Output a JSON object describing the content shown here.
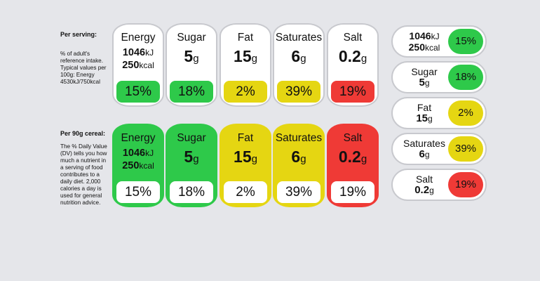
{
  "colors": {
    "green": "#2ec94a",
    "yellow": "#e5d612",
    "red": "#ef3a36",
    "background": "#e5e6ea"
  },
  "panel1": {
    "heading": "Per serving:",
    "note": "% of adult's reference intake. Typical values per 100g: Energy 4530kJ/750kcal",
    "labels": [
      {
        "name": "Energy",
        "line1_value": "1046",
        "line1_unit": "kJ",
        "line2_value": "250",
        "line2_unit": "kcal",
        "percent": "15%",
        "color": "green"
      },
      {
        "name": "Sugar",
        "value": "5",
        "unit": "g",
        "percent": "18%",
        "color": "green"
      },
      {
        "name": "Fat",
        "value": "15",
        "unit": "g",
        "percent": "2%",
        "color": "yellow"
      },
      {
        "name": "Saturates",
        "value": "6",
        "unit": "g",
        "percent": "39%",
        "color": "yellow"
      },
      {
        "name": "Salt",
        "value": "0.2",
        "unit": "g",
        "percent": "19%",
        "color": "red"
      }
    ]
  },
  "panel2": {
    "heading": "Per 90g cereal:",
    "note": "The % Daily Value (DV) tells you how much a nutrient in a serving of food contributes to a daily diet. 2,000 calories a day is used for general nutrition advice.",
    "labels": [
      {
        "name": "Energy",
        "line1_value": "1046",
        "line1_unit": "kJ",
        "line2_value": "250",
        "line2_unit": "kcal",
        "percent": "15%",
        "color": "green"
      },
      {
        "name": "Sugar",
        "value": "5",
        "unit": "g",
        "percent": "18%",
        "color": "green"
      },
      {
        "name": "Fat",
        "value": "15",
        "unit": "g",
        "percent": "2%",
        "color": "yellow"
      },
      {
        "name": "Saturates",
        "value": "6",
        "unit": "g",
        "percent": "39%",
        "color": "yellow"
      },
      {
        "name": "Salt",
        "value": "0.2",
        "unit": "g",
        "percent": "19%",
        "color": "red"
      }
    ]
  },
  "pills": [
    {
      "line1_value": "1046",
      "line1_unit": "kJ",
      "line2_value": "250",
      "line2_unit": "kcal",
      "percent": "15%",
      "color": "green"
    },
    {
      "name": "Sugar",
      "value": "5",
      "unit": "g",
      "percent": "18%",
      "color": "green"
    },
    {
      "name": "Fat",
      "value": "15",
      "unit": "g",
      "percent": "2%",
      "color": "yellow"
    },
    {
      "name": "Saturates",
      "value": "6",
      "unit": "g",
      "percent": "39%",
      "color": "yellow"
    },
    {
      "name": "Salt",
      "value": "0.2",
      "unit": "g",
      "percent": "19%",
      "color": "red"
    }
  ]
}
